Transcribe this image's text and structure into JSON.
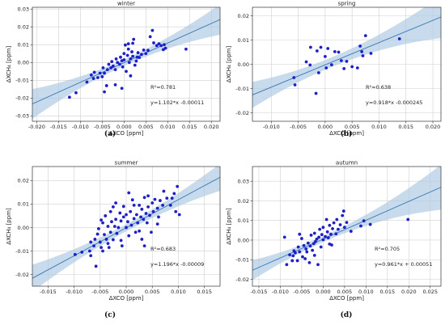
{
  "chart_data": [
    {
      "type": "scatter",
      "panel_label": "(a)",
      "title": "winter",
      "xlabel": "ΔXCO [ppm]",
      "ylabel": "ΔXCH₄ [ppm]",
      "xlim": [
        -0.021,
        0.022
      ],
      "ylim": [
        -0.033,
        0.031
      ],
      "xticks": [
        "-0.020",
        "-0.015",
        "-0.010",
        "-0.005",
        "0.000",
        "0.005",
        "0.010",
        "0.015",
        "0.020"
      ],
      "xtick_values": [
        -0.02,
        -0.015,
        -0.01,
        -0.005,
        0,
        0.005,
        0.01,
        0.015,
        0.02
      ],
      "yticks": [
        "-0.03",
        "-0.02",
        "-0.01",
        "0.00",
        "0.01",
        "0.02",
        "0.03"
      ],
      "ytick_values": [
        -0.03,
        -0.02,
        -0.01,
        0,
        0.01,
        0.02,
        0.03
      ],
      "grid": true,
      "annotation_r2": "R²=0.781",
      "annotation_eq": "y=1.102*x -0.00011",
      "fit": {
        "slope": 1.102,
        "intercept": -0.00011
      },
      "band_halfwidth": {
        "center": 0.0003,
        "base": 0.0018,
        "k": 0.2
      },
      "points": [
        [
          -0.0125,
          -0.0195
        ],
        [
          -0.011,
          -0.017
        ],
        [
          -0.0085,
          -0.011
        ],
        [
          -0.0075,
          -0.007
        ],
        [
          -0.007,
          -0.009
        ],
        [
          -0.0068,
          -0.0055
        ],
        [
          -0.006,
          -0.0085
        ],
        [
          -0.0055,
          -0.006
        ],
        [
          -0.005,
          -0.008
        ],
        [
          -0.0048,
          -0.003
        ],
        [
          -0.0045,
          -0.006
        ],
        [
          -0.004,
          -0.013
        ],
        [
          -0.0038,
          -0.004
        ],
        [
          -0.0035,
          -0.001
        ],
        [
          -0.003,
          -0.003
        ],
        [
          -0.0028,
          0.0005
        ],
        [
          -0.0025,
          -0.002
        ],
        [
          -0.002,
          -0.004
        ],
        [
          -0.0018,
          0.002
        ],
        [
          -0.0015,
          0.0
        ],
        [
          -0.001,
          -0.001
        ],
        [
          -0.0008,
          0.003
        ],
        [
          -0.0005,
          0.001
        ],
        [
          -0.0003,
          -0.0025
        ],
        [
          0.0,
          0.0015
        ],
        [
          0.0,
          0.005
        ],
        [
          0.0003,
          0.0098
        ],
        [
          0.0005,
          -0.005
        ],
        [
          0.0008,
          0.004
        ],
        [
          0.001,
          0.0075
        ],
        [
          0.001,
          0.0105
        ],
        [
          0.0012,
          0.0
        ],
        [
          0.0015,
          0.002
        ],
        [
          0.0018,
          0.006
        ],
        [
          0.002,
          0.0108
        ],
        [
          0.002,
          0.0035
        ],
        [
          0.0022,
          0.013
        ],
        [
          0.0025,
          -0.0015
        ],
        [
          0.0028,
          0.0008
        ],
        [
          0.003,
          0.003
        ],
        [
          0.0032,
          0.0055
        ],
        [
          0.0035,
          0.0028
        ],
        [
          0.004,
          0.0045
        ],
        [
          0.0045,
          0.007
        ],
        [
          0.005,
          0.005
        ],
        [
          0.0055,
          0.0068
        ],
        [
          0.006,
          0.0145
        ],
        [
          0.0065,
          0.018
        ],
        [
          0.0068,
          0.011
        ],
        [
          0.0075,
          0.0095
        ],
        [
          0.008,
          0.0105
        ],
        [
          0.0085,
          0.0095
        ],
        [
          0.009,
          0.0072
        ],
        [
          0.0092,
          0.01
        ],
        [
          0.0095,
          0.008
        ],
        [
          0.0142,
          0.0075
        ],
        [
          -0.0005,
          -0.0145
        ],
        [
          -0.002,
          -0.0125
        ],
        [
          0.0015,
          -0.0075
        ],
        [
          -0.0045,
          -0.0165
        ]
      ]
    },
    {
      "type": "scatter",
      "panel_label": "(b)",
      "title": "spring",
      "xlabel": "ΔXCO [ppm]",
      "ylabel": "ΔXCH₄ [ppm]",
      "xlim": [
        -0.0135,
        0.0215
      ],
      "ylim": [
        -0.0235,
        0.0235
      ],
      "xticks": [
        "-0.010",
        "-0.005",
        "0.000",
        "0.005",
        "0.010",
        "0.015",
        "0.020"
      ],
      "xtick_values": [
        -0.01,
        -0.005,
        0,
        0.005,
        0.01,
        0.015,
        0.02
      ],
      "yticks": [
        "-0.02",
        "-0.01",
        "0.00",
        "0.01",
        "0.02"
      ],
      "ytick_values": [
        -0.02,
        -0.01,
        0,
        0.01,
        0.02
      ],
      "grid": true,
      "annotation_r2": "R²=0.638",
      "annotation_eq": "y=0.918*x -0.000245",
      "fit": {
        "slope": 0.918,
        "intercept": -0.000245
      },
      "band_halfwidth": {
        "center": 0.001,
        "base": 0.002,
        "k": 0.2
      },
      "points": [
        [
          -0.0058,
          -0.0055
        ],
        [
          -0.0056,
          -0.0085
        ],
        [
          -0.0035,
          0.001
        ],
        [
          -0.0028,
          -0.0003
        ],
        [
          -0.0027,
          0.007
        ],
        [
          -0.0017,
          -0.012
        ],
        [
          -0.0015,
          0.0055
        ],
        [
          -0.0012,
          -0.0035
        ],
        [
          -0.0008,
          0.007
        ],
        [
          0.0,
          0.0032
        ],
        [
          0.0002,
          -0.0015
        ],
        [
          0.0005,
          0.0065
        ],
        [
          0.0012,
          -0.0002
        ],
        [
          0.0018,
          0.0052
        ],
        [
          0.0025,
          0.005
        ],
        [
          0.003,
          0.0015
        ],
        [
          0.0035,
          -0.0018
        ],
        [
          0.004,
          0.0012
        ],
        [
          0.005,
          -0.001
        ],
        [
          0.006,
          -0.0015
        ],
        [
          0.0065,
          0.0075
        ],
        [
          0.0068,
          0.0052
        ],
        [
          0.007,
          0.0035
        ],
        [
          0.0075,
          0.0118
        ],
        [
          0.0085,
          0.0045
        ],
        [
          0.0138,
          0.0105
        ]
      ]
    },
    {
      "type": "scatter",
      "panel_label": "(c)",
      "title": "summer",
      "xlabel": "ΔXCO [ppm]",
      "ylabel": "ΔXCH₄ [ppm]",
      "xlim": [
        -0.018,
        0.018
      ],
      "ylim": [
        -0.025,
        0.026
      ],
      "xticks": [
        "-0.015",
        "-0.010",
        "-0.005",
        "0.000",
        "0.005",
        "0.010",
        "0.015"
      ],
      "xtick_values": [
        -0.015,
        -0.01,
        -0.005,
        0,
        0.005,
        0.01,
        0.015
      ],
      "yticks": [
        "-0.02",
        "-0.01",
        "0.00",
        "0.01",
        "0.02"
      ],
      "ytick_values": [
        -0.02,
        -0.01,
        0,
        0.01,
        0.02
      ],
      "grid": true,
      "annotation_r2": "R²=0.683",
      "annotation_eq": "y=1.196*x -0.00009",
      "fit": {
        "slope": 1.196,
        "intercept": -9e-05
      },
      "band_halfwidth": {
        "center": 0.0,
        "base": 0.0015,
        "k": 0.22
      },
      "points": [
        [
          -0.0098,
          -0.0115
        ],
        [
          -0.0085,
          -0.0105
        ],
        [
          -0.007,
          -0.01
        ],
        [
          -0.0068,
          -0.0062
        ],
        [
          -0.0062,
          -0.0078
        ],
        [
          -0.006,
          -0.005
        ],
        [
          -0.0055,
          -0.0028
        ],
        [
          -0.0053,
          -0.0005
        ],
        [
          -0.005,
          -0.0062
        ],
        [
          -0.0048,
          -0.0085
        ],
        [
          -0.0045,
          -0.01
        ],
        [
          -0.0045,
          0.002
        ],
        [
          -0.0042,
          -0.003
        ],
        [
          -0.004,
          0.005
        ],
        [
          -0.0038,
          -0.005
        ],
        [
          -0.0035,
          0.0005
        ],
        [
          -0.0033,
          -0.0085
        ],
        [
          -0.003,
          -0.002
        ],
        [
          -0.003,
          0.0068
        ],
        [
          -0.0028,
          0.0025
        ],
        [
          -0.0025,
          -0.0052
        ],
        [
          -0.0022,
          0.0005
        ],
        [
          -0.002,
          0.0035
        ],
        [
          -0.0018,
          -0.0025
        ],
        [
          -0.0015,
          0.0
        ],
        [
          -0.0012,
          0.0062
        ],
        [
          -0.001,
          0.0028
        ],
        [
          -0.0008,
          -0.0078
        ],
        [
          -0.0005,
          0.0045
        ],
        [
          -0.0005,
          0.009
        ],
        [
          0.0,
          0.0
        ],
        [
          0.0,
          0.0055
        ],
        [
          0.0003,
          0.0025
        ],
        [
          0.0005,
          -0.0035
        ],
        [
          0.0008,
          0.0068
        ],
        [
          0.001,
          0.001
        ],
        [
          0.0012,
          0.0118
        ],
        [
          0.0015,
          0.0038
        ],
        [
          0.0018,
          -0.002
        ],
        [
          0.002,
          0.0055
        ],
        [
          0.0022,
          0.002
        ],
        [
          0.0025,
          0.0095
        ],
        [
          0.0028,
          0.0045
        ],
        [
          0.003,
          -0.005
        ],
        [
          0.003,
          0.0078
        ],
        [
          0.0033,
          0.0035
        ],
        [
          0.0035,
          0.0128
        ],
        [
          0.0038,
          0.006
        ],
        [
          0.004,
          0.002
        ],
        [
          0.0042,
          0.0088
        ],
        [
          0.0045,
          0.0052
        ],
        [
          0.0048,
          -0.002
        ],
        [
          0.005,
          0.0105
        ],
        [
          0.0052,
          0.0068
        ],
        [
          0.0055,
          0.012
        ],
        [
          0.006,
          0.0082
        ],
        [
          0.0062,
          0.0045
        ],
        [
          0.0065,
          0.0115
        ],
        [
          0.007,
          0.0095
        ],
        [
          0.0072,
          0.0155
        ],
        [
          0.0078,
          0.0125
        ],
        [
          0.0085,
          0.0095
        ],
        [
          0.0088,
          0.0125
        ],
        [
          0.0092,
          0.0145
        ],
        [
          0.0095,
          0.0068
        ],
        [
          0.0098,
          0.0175
        ],
        [
          0.0102,
          0.0055
        ],
        [
          -0.0058,
          -0.0165
        ],
        [
          -0.0048,
          0.0032
        ],
        [
          -0.0025,
          0.0088
        ],
        [
          0.0005,
          0.0148
        ],
        [
          0.0025,
          -0.0015
        ],
        [
          0.0035,
          -0.0078
        ],
        [
          -0.001,
          -0.0055
        ],
        [
          -0.0035,
          -0.0068
        ],
        [
          -0.0068,
          -0.012
        ],
        [
          0.0015,
          0.0095
        ],
        [
          -0.002,
          0.0105
        ],
        [
          0.0042,
          0.0135
        ],
        [
          0.006,
          0.0015
        ]
      ]
    },
    {
      "type": "scatter",
      "panel_label": "(d)",
      "title": "autumn",
      "xlabel": "ΔXCO [ppm]",
      "ylabel": "ΔXCH₄ [ppm]",
      "xlim": [
        -0.0165,
        0.0275
      ],
      "ylim": [
        -0.0235,
        0.0375
      ],
      "xticks": [
        "-0.015",
        "-0.010",
        "-0.005",
        "0.000",
        "0.005",
        "0.010",
        "0.015",
        "0.020",
        "0.025"
      ],
      "xtick_values": [
        -0.015,
        -0.01,
        -0.005,
        0,
        0.005,
        0.01,
        0.015,
        0.02,
        0.025
      ],
      "yticks": [
        "-0.02",
        "-0.01",
        "0.00",
        "0.01",
        "0.02",
        "0.03"
      ],
      "ytick_values": [
        -0.02,
        -0.01,
        0,
        0.01,
        0.02,
        0.03
      ],
      "grid": true,
      "annotation_r2": "R²=0.705",
      "annotation_eq": "y=0.961*x + 0.00051",
      "fit": {
        "slope": 0.961,
        "intercept": 0.00051
      },
      "band_halfwidth": {
        "center": 0.0,
        "base": 0.0015,
        "k": 0.22
      },
      "points": [
        [
          -0.009,
          0.0015
        ],
        [
          -0.0085,
          -0.0125
        ],
        [
          -0.0078,
          -0.0075
        ],
        [
          -0.0072,
          -0.0105
        ],
        [
          -0.007,
          -0.008
        ],
        [
          -0.0065,
          -0.0065
        ],
        [
          -0.006,
          -0.0105
        ],
        [
          -0.0058,
          -0.0035
        ],
        [
          -0.0055,
          -0.006
        ],
        [
          -0.005,
          0.0008
        ],
        [
          -0.0048,
          -0.0085
        ],
        [
          -0.0045,
          -0.0028
        ],
        [
          -0.0042,
          -0.0095
        ],
        [
          -0.004,
          -0.0045
        ],
        [
          -0.0038,
          -0.006
        ],
        [
          -0.0035,
          -0.0015
        ],
        [
          -0.0032,
          -0.0115
        ],
        [
          -0.003,
          -0.003
        ],
        [
          -0.0028,
          0.0025
        ],
        [
          -0.0025,
          -0.0052
        ],
        [
          -0.0022,
          -0.0018
        ],
        [
          -0.002,
          0.0035
        ],
        [
          -0.0018,
          -0.0008
        ],
        [
          -0.0015,
          0.0005
        ],
        [
          -0.0012,
          -0.0125
        ],
        [
          -0.001,
          0.0015
        ],
        [
          -0.0008,
          0.0055
        ],
        [
          -0.0005,
          -0.0035
        ],
        [
          -0.0003,
          0.0028
        ],
        [
          0.0,
          0.0002
        ],
        [
          0.0,
          0.0065
        ],
        [
          0.0005,
          0.0018
        ],
        [
          0.0008,
          0.0105
        ],
        [
          0.001,
          0.0042
        ],
        [
          0.0012,
          0.0012
        ],
        [
          0.0015,
          0.0075
        ],
        [
          0.0018,
          0.003
        ],
        [
          0.002,
          -0.0025
        ],
        [
          0.0022,
          0.0058
        ],
        [
          0.0025,
          0.0088
        ],
        [
          0.003,
          0.0032
        ],
        [
          0.0032,
          0.0105
        ],
        [
          0.0035,
          0.0055
        ],
        [
          0.004,
          0.0078
        ],
        [
          0.0045,
          0.0125
        ],
        [
          0.0048,
          0.0148
        ],
        [
          0.005,
          0.0065
        ],
        [
          0.0055,
          0.009
        ],
        [
          0.0065,
          0.0045
        ],
        [
          0.0088,
          0.0072
        ],
        [
          0.0095,
          0.0098
        ],
        [
          0.011,
          0.008
        ],
        [
          0.0198,
          0.0105
        ],
        [
          -0.0055,
          0.003
        ],
        [
          -0.0068,
          -0.0055
        ],
        [
          0.0015,
          -0.002
        ],
        [
          -0.002,
          -0.0078
        ]
      ]
    }
  ]
}
